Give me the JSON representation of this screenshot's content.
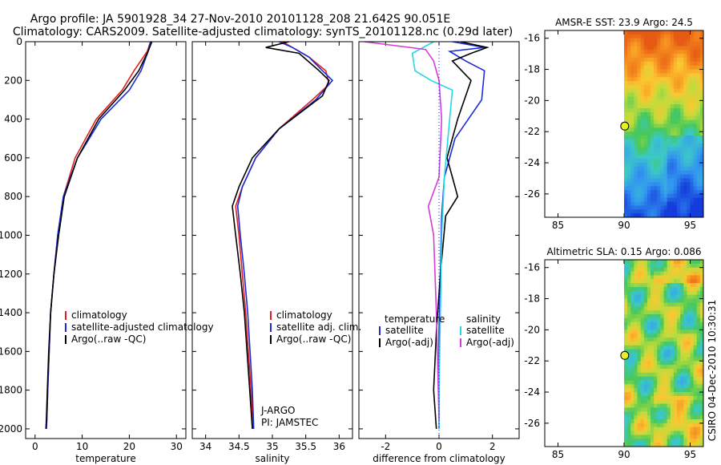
{
  "header": {
    "title_line1": "Argo profile: JA 5901928_34 27-Nov-2010 20101128_208 21.642S 90.051E",
    "title_line2": "Climatology: CARS2009. Satellite-adjusted climatology: synTS_20101128.nc (0.29d later)"
  },
  "side_caption": "CSIRO 04-Dec-2010 10:30:31",
  "colors": {
    "climatology": "#e02020",
    "satellite": "#1a2bd8",
    "argo": "#000000",
    "sal_satellite": "#22d8e6",
    "sal_argo": "#d63ad8"
  },
  "chart_data": [
    {
      "id": "temperature",
      "type": "line",
      "xlabel": "temperature",
      "ylabel": "",
      "xlim": [
        -2,
        32
      ],
      "ylim": [
        2050,
        0
      ],
      "xticks": [
        "0",
        "10",
        "20",
        "30"
      ],
      "xtick_values": [
        0,
        10,
        20,
        30
      ],
      "yticks": [
        "0",
        "200",
        "400",
        "600",
        "800",
        "1000",
        "1200",
        "1400",
        "1600",
        "1800",
        "2000"
      ],
      "ytick_values": [
        0,
        200,
        400,
        600,
        800,
        1000,
        1200,
        1400,
        1600,
        1800,
        2000
      ],
      "legend": [
        "climatology",
        "satellite-adjusted climatology",
        "Argo(..raw -QC)"
      ],
      "series": [
        {
          "name": "climatology",
          "color": "#e02020",
          "x": [
            24.5,
            23.8,
            21,
            18.5,
            13,
            8.5,
            6,
            4.8,
            4,
            3.3,
            3,
            2.7,
            2.5,
            2.4
          ],
          "y": [
            0,
            50,
            150,
            250,
            400,
            600,
            800,
            1000,
            1200,
            1400,
            1600,
            1800,
            1950,
            2000
          ]
        },
        {
          "name": "satellite-adjusted climatology",
          "color": "#1a2bd8",
          "x": [
            24.5,
            24,
            22.5,
            20,
            14,
            9,
            6,
            4.8,
            4,
            3.3,
            3,
            2.7,
            2.5,
            2.4
          ],
          "y": [
            0,
            50,
            150,
            250,
            400,
            600,
            800,
            1000,
            1200,
            1400,
            1600,
            1800,
            1950,
            2000
          ]
        },
        {
          "name": "Argo(..raw -QC)",
          "color": "#000000",
          "x": [
            24.8,
            24,
            22,
            19,
            13.5,
            9,
            6.2,
            5,
            4,
            3.3,
            2.9,
            2.6,
            2.4,
            2.3
          ],
          "y": [
            0,
            50,
            150,
            250,
            400,
            600,
            800,
            1000,
            1200,
            1400,
            1600,
            1800,
            1950,
            2000
          ]
        }
      ]
    },
    {
      "id": "salinity",
      "type": "line",
      "xlabel": "salinity",
      "ylabel": "",
      "xlim": [
        33.8,
        36.2
      ],
      "ylim": [
        2050,
        0
      ],
      "xticks": [
        "34",
        "34.5",
        "35",
        "35.5",
        "36"
      ],
      "xtick_values": [
        34,
        34.5,
        35,
        35.5,
        36
      ],
      "legend": [
        "climatology",
        "satellite adj. clim.",
        "Argo(..raw -QC)"
      ],
      "annotations": [
        "J-ARGO",
        "PI: JAMSTEC"
      ],
      "series": [
        {
          "name": "climatology",
          "color": "#e02020",
          "x": [
            35.15,
            35.3,
            35.55,
            35.8,
            35.85,
            35.6,
            35.1,
            34.75,
            34.55,
            34.45,
            34.5,
            34.55,
            34.6,
            34.68,
            34.71
          ],
          "y": [
            0,
            30,
            80,
            150,
            220,
            300,
            450,
            600,
            750,
            850,
            1000,
            1200,
            1400,
            1800,
            2000
          ]
        },
        {
          "name": "satellite adj. clim.",
          "color": "#1a2bd8",
          "x": [
            35.1,
            35.3,
            35.55,
            35.75,
            35.9,
            35.65,
            35.1,
            34.75,
            34.55,
            34.48,
            34.52,
            34.58,
            34.63,
            34.7,
            34.72
          ],
          "y": [
            0,
            30,
            80,
            150,
            200,
            300,
            450,
            600,
            750,
            850,
            1000,
            1200,
            1400,
            1800,
            2000
          ]
        },
        {
          "name": "Argo(..raw -QC)",
          "color": "#000000",
          "x": [
            35.25,
            34.9,
            35.4,
            35.7,
            35.85,
            35.75,
            35.1,
            34.7,
            34.5,
            34.4,
            34.45,
            34.52,
            34.58,
            34.66,
            34.7
          ],
          "y": [
            0,
            30,
            60,
            150,
            200,
            280,
            450,
            600,
            750,
            850,
            1000,
            1200,
            1400,
            1800,
            2000
          ]
        }
      ]
    },
    {
      "id": "difference",
      "type": "line",
      "xlabel": "difference from climatology",
      "ylabel": "",
      "xlim": [
        -3,
        3
      ],
      "ylim": [
        2050,
        0
      ],
      "xticks": [
        "-2",
        "0",
        "2"
      ],
      "xtick_values": [
        -2,
        0,
        2
      ],
      "legend_temperature_header": "temperature",
      "legend_salinity_header": "salinity",
      "legend": [
        "satellite",
        "Argo(-adj)",
        "satellite",
        "Argo(-adj)"
      ],
      "series": [
        {
          "name": "temperature satellite",
          "color": "#1a2bd8",
          "x": [
            0.5,
            1.7,
            0.4,
            1,
            1.7,
            1.6,
            0.6,
            0.2,
            0.1,
            0.05,
            0,
            0,
            0
          ],
          "y": [
            0,
            30,
            50,
            100,
            150,
            300,
            500,
            700,
            900,
            1200,
            1500,
            1800,
            2000
          ]
        },
        {
          "name": "temperature Argo(-adj)",
          "color": "#000000",
          "x": [
            0.8,
            1.8,
            1.2,
            0.5,
            1.2,
            0.7,
            0.3,
            0.5,
            0.7,
            0.25,
            0.05,
            -0.1,
            -0.2,
            -0.1
          ],
          "y": [
            0,
            30,
            60,
            100,
            200,
            400,
            600,
            700,
            800,
            900,
            1200,
            1500,
            1800,
            2000
          ]
        },
        {
          "name": "salinity satellite",
          "color": "#22d8e6",
          "x": [
            -0.2,
            -1,
            -0.9,
            -0.3,
            0.5,
            0.4,
            0.2,
            0.1,
            0.05,
            0,
            0
          ],
          "y": [
            0,
            60,
            150,
            200,
            250,
            400,
            700,
            1000,
            1400,
            1800,
            2000
          ]
        },
        {
          "name": "salinity Argo(-adj)",
          "color": "#d63ad8",
          "x": [
            -2.8,
            -0.5,
            -0.2,
            0,
            0.1,
            0,
            -0.4,
            -0.2,
            -0.1,
            0
          ],
          "y": [
            0,
            40,
            100,
            200,
            400,
            700,
            850,
            1000,
            1400,
            1950
          ]
        }
      ]
    },
    {
      "id": "sst_map",
      "type": "heatmap",
      "title": "AMSR-E SST: 23.9 Argo: 24.5",
      "xlim": [
        84,
        96
      ],
      "ylim": [
        -27.5,
        -15.5
      ],
      "xticks": [
        "85",
        "90",
        "95"
      ],
      "xtick_values": [
        85,
        90,
        95
      ],
      "yticks": [
        "-16",
        "-18",
        "-20",
        "-22",
        "-24",
        "-26"
      ],
      "ytick_values": [
        -16,
        -18,
        -20,
        -22,
        -24,
        -26
      ],
      "data_lon_range": [
        90,
        96
      ],
      "argo_position": {
        "lon": 90.051,
        "lat": -21.642
      }
    },
    {
      "id": "sla_map",
      "type": "heatmap",
      "title": "Altimetric SLA: 0.15 Argo: 0.086",
      "xlim": [
        84,
        96
      ],
      "ylim": [
        -27.5,
        -15.5
      ],
      "xticks": [
        "85",
        "90",
        "95"
      ],
      "xtick_values": [
        85,
        90,
        95
      ],
      "yticks": [
        "-16",
        "-18",
        "-20",
        "-22",
        "-24",
        "-26"
      ],
      "ytick_values": [
        -16,
        -18,
        -20,
        -22,
        -24,
        -26
      ],
      "data_lon_range": [
        90,
        96
      ],
      "argo_position": {
        "lon": 90.051,
        "lat": -21.642
      }
    }
  ]
}
